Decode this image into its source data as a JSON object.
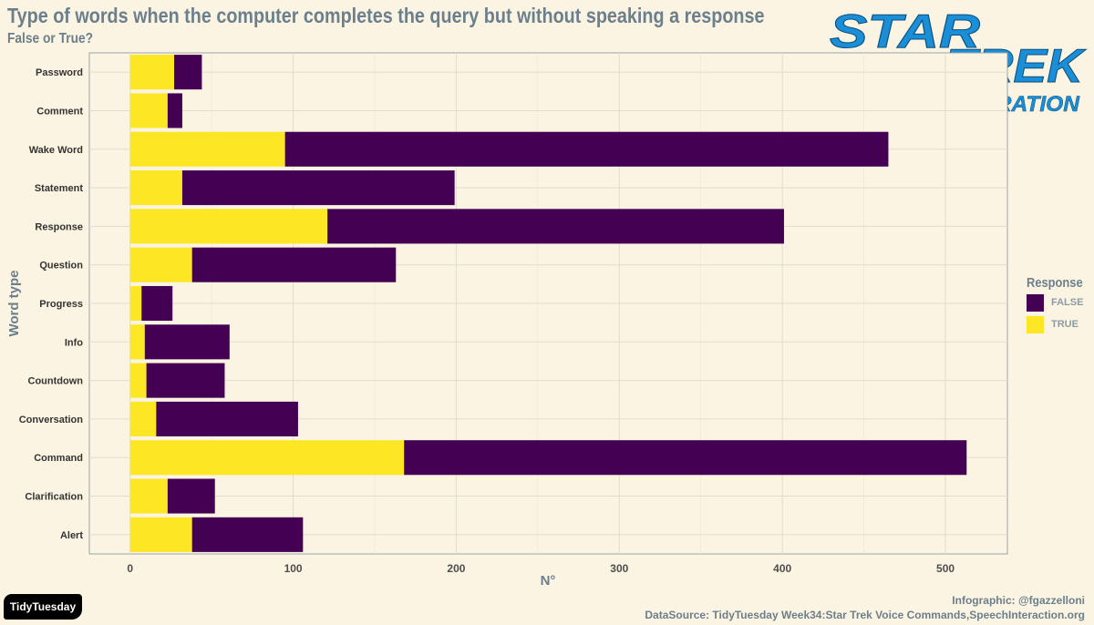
{
  "header": {
    "title": "Type of words when the computer completes the query but without speaking a response",
    "subtitle": "False or True?"
  },
  "logo": {
    "line1": "STAR",
    "line2": "TREK",
    "line3": "THE NEXT GENERATION",
    "color": "#1a8fd8"
  },
  "legend": {
    "title": "Response",
    "items": [
      {
        "label": "FALSE",
        "color": "#440154"
      },
      {
        "label": "TRUE",
        "color": "#fde725"
      }
    ]
  },
  "credits": {
    "line1": "Infographic: @fgazzelloni",
    "line2": "DataSource: TidyTuesday Week34:Star Trek Voice Commands,SpeechInteraction.org"
  },
  "badge": {
    "label": "TidyTuesday"
  },
  "chart_data": {
    "type": "bar",
    "orientation": "horizontal",
    "stacked": true,
    "xlabel": "N°",
    "ylabel": "Word type",
    "xlim": [
      -25,
      538
    ],
    "x_ticks": [
      0,
      100,
      200,
      300,
      400,
      500
    ],
    "grid": true,
    "legend_position": "right",
    "categories": [
      "Password",
      "Comment",
      "Wake Word",
      "Statement",
      "Response",
      "Question",
      "Progress",
      "Info",
      "Countdown",
      "Conversation",
      "Command",
      "Clarification",
      "Alert"
    ],
    "series": [
      {
        "name": "TRUE",
        "color": "#fde725",
        "values": [
          27,
          23,
          95,
          32,
          121,
          38,
          7,
          9,
          10,
          16,
          168,
          23,
          38
        ]
      },
      {
        "name": "FALSE",
        "color": "#440154",
        "values": [
          17,
          9,
          370,
          167,
          280,
          125,
          19,
          52,
          48,
          87,
          345,
          29,
          68
        ]
      }
    ]
  }
}
